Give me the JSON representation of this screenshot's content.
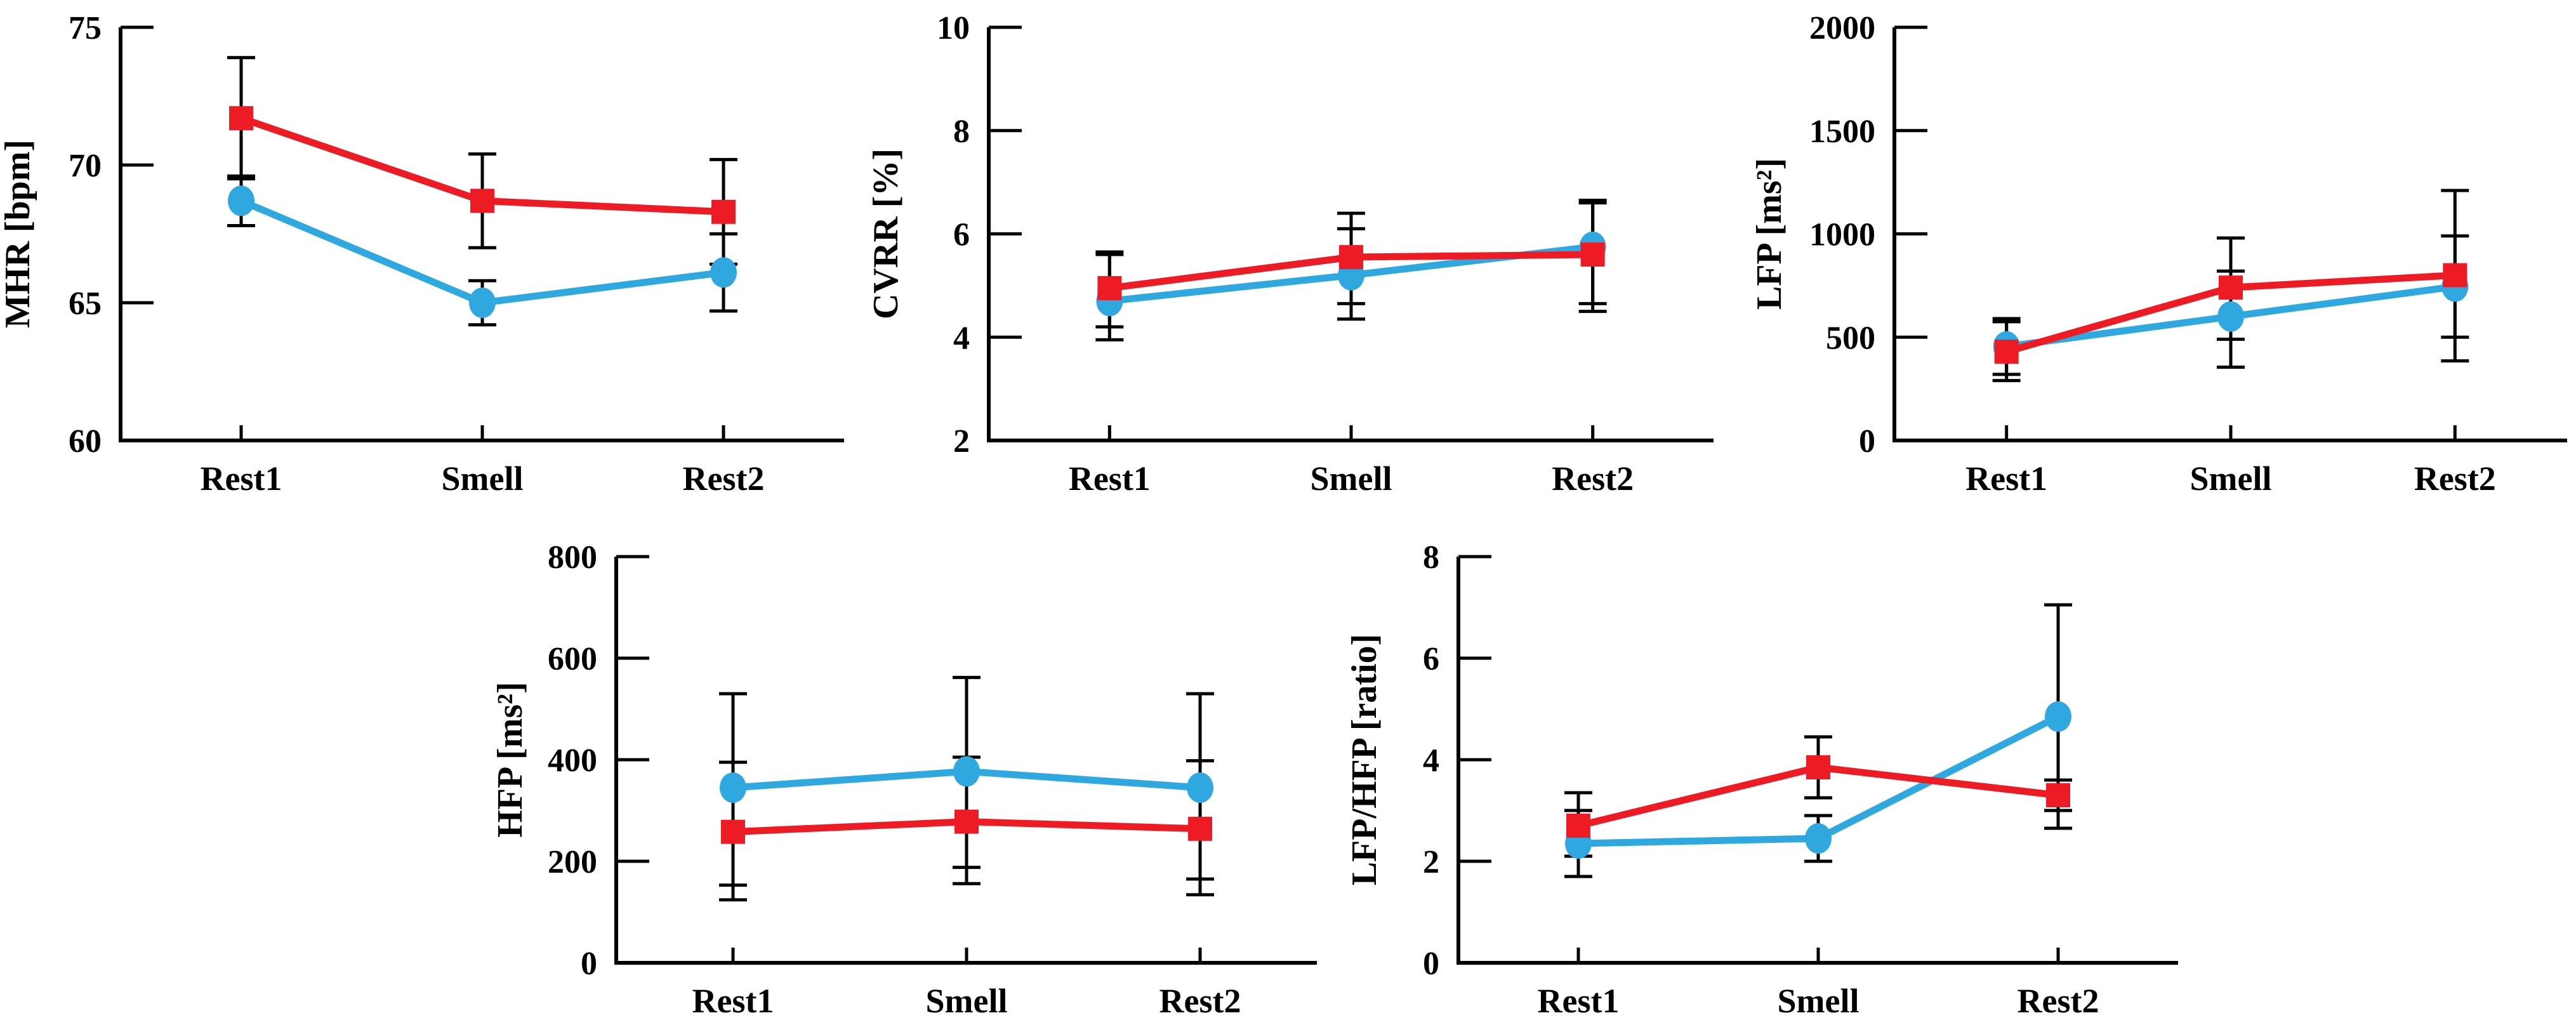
{
  "figure": {
    "background": "#ffffff",
    "error_bar_color": "#000000",
    "red_series_color": "#ed1c24",
    "blue_series_color": "#2fa8df"
  },
  "chart_data": [
    {
      "id": "mhr",
      "type": "line",
      "ylabel": "MHR [bpm]",
      "xlabel": "",
      "categories": [
        "Rest1",
        "Smell",
        "Rest2"
      ],
      "ylim": [
        60,
        75
      ],
      "yticks": [
        75,
        70,
        65,
        60
      ],
      "grid": false,
      "legend": "none",
      "series": [
        {
          "name": "blue-circles",
          "marker": "circle",
          "color": "#2fa8df",
          "values": [
            68.7,
            65.0,
            66.1
          ],
          "err_low": [
            67.8,
            64.2,
            64.7
          ],
          "err_high": [
            69.6,
            65.8,
            67.5
          ]
        },
        {
          "name": "red-squares",
          "marker": "square",
          "color": "#ed1c24",
          "values": [
            71.7,
            68.7,
            68.3
          ],
          "err_low": [
            69.5,
            67.0,
            66.4
          ],
          "err_high": [
            73.9,
            70.4,
            70.2
          ]
        }
      ]
    },
    {
      "id": "cvrr",
      "type": "line",
      "ylabel": "CVRR [%]",
      "xlabel": "",
      "categories": [
        "Rest1",
        "Smell",
        "Rest2"
      ],
      "ylim": [
        2,
        10
      ],
      "yticks": [
        10,
        8,
        6,
        4,
        2
      ],
      "grid": false,
      "legend": "none",
      "series": [
        {
          "name": "blue-circles",
          "marker": "circle",
          "color": "#2fa8df",
          "values": [
            4.7,
            5.2,
            5.75
          ],
          "err_low": [
            3.95,
            4.35,
            4.5
          ],
          "err_high": [
            5.6,
            6.1,
            6.6
          ]
        },
        {
          "name": "red-squares",
          "marker": "square",
          "color": "#ed1c24",
          "values": [
            4.95,
            5.55,
            5.6
          ],
          "err_low": [
            4.2,
            4.65,
            4.65
          ],
          "err_high": [
            5.65,
            6.4,
            6.65
          ]
        }
      ]
    },
    {
      "id": "lfp",
      "type": "line",
      "ylabel": "LFP [ms²]",
      "xlabel": "",
      "categories": [
        "Rest1",
        "Smell",
        "Rest2"
      ],
      "ylim": [
        0,
        2000
      ],
      "yticks": [
        2000,
        1500,
        1000,
        500,
        0
      ],
      "grid": false,
      "legend": "none",
      "series": [
        {
          "name": "blue-circles",
          "marker": "circle",
          "color": "#2fa8df",
          "values": [
            455,
            600,
            745
          ],
          "err_low": [
            320,
            355,
            385
          ],
          "err_high": [
            590,
            820,
            990
          ]
        },
        {
          "name": "red-squares",
          "marker": "square",
          "color": "#ed1c24",
          "values": [
            430,
            740,
            800
          ],
          "err_low": [
            290,
            490,
            500
          ],
          "err_high": [
            575,
            980,
            1210
          ]
        }
      ]
    },
    {
      "id": "hfp",
      "type": "line",
      "ylabel": "HFP [ms²]",
      "xlabel": "",
      "categories": [
        "Rest1",
        "Smell",
        "Rest2"
      ],
      "ylim": [
        0,
        800
      ],
      "yticks": [
        800,
        600,
        400,
        200,
        0
      ],
      "grid": false,
      "legend": "none",
      "series": [
        {
          "name": "blue-circles",
          "marker": "circle",
          "color": "#2fa8df",
          "values": [
            345,
            377,
            345
          ],
          "err_low": [
            153,
            188,
            165
          ],
          "err_high": [
            530,
            562,
            530
          ]
        },
        {
          "name": "red-squares",
          "marker": "square",
          "color": "#ed1c24",
          "values": [
            258,
            278,
            264
          ],
          "err_low": [
            124,
            156,
            134
          ],
          "err_high": [
            395,
            405,
            398
          ]
        }
      ]
    },
    {
      "id": "ratio",
      "type": "line",
      "ylabel": "LFP/HFP [ratio]",
      "xlabel": "",
      "categories": [
        "Rest1",
        "Smell",
        "Rest2"
      ],
      "ylim": [
        0,
        8
      ],
      "yticks": [
        8,
        6,
        4,
        2,
        0
      ],
      "grid": false,
      "legend": "none",
      "series": [
        {
          "name": "blue-circles",
          "marker": "circle",
          "color": "#2fa8df",
          "values": [
            2.35,
            2.45,
            4.85
          ],
          "err_low": [
            1.7,
            2.0,
            2.65
          ],
          "err_high": [
            3.0,
            2.9,
            7.05
          ]
        },
        {
          "name": "red-squares",
          "marker": "square",
          "color": "#ed1c24",
          "values": [
            2.7,
            3.85,
            3.3
          ],
          "err_low": [
            2.1,
            3.25,
            3.0
          ],
          "err_high": [
            3.35,
            4.45,
            3.6
          ]
        }
      ]
    }
  ]
}
